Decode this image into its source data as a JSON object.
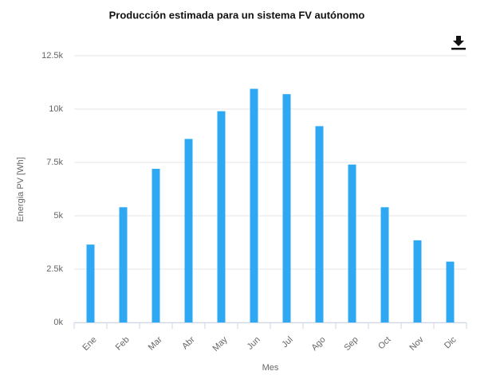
{
  "chart_data": {
    "type": "bar",
    "title": "Producción estimada para un sistema FV autónomo",
    "x_label": "Mes",
    "y_label": "Energia PV [Wh]",
    "categories": [
      "Ene",
      "Feb",
      "Mar",
      "Abr",
      "May",
      "Jun",
      "Jul",
      "Ago",
      "Sep",
      "Oct",
      "Nov",
      "Dic"
    ],
    "values": [
      3650,
      5400,
      7200,
      8600,
      9900,
      10950,
      10700,
      9200,
      7400,
      5400,
      3850,
      2850
    ],
    "color": "#2ea8f2",
    "ylim": [
      0,
      12500
    ],
    "yticks": [
      {
        "value": 0,
        "label": "0k"
      },
      {
        "value": 2500,
        "label": "2.5k"
      },
      {
        "value": 5000,
        "label": "5k"
      },
      {
        "value": 7500,
        "label": "7.5k"
      },
      {
        "value": 10000,
        "label": "10k"
      },
      {
        "value": 12500,
        "label": "12.5k"
      }
    ],
    "grid": true
  }
}
